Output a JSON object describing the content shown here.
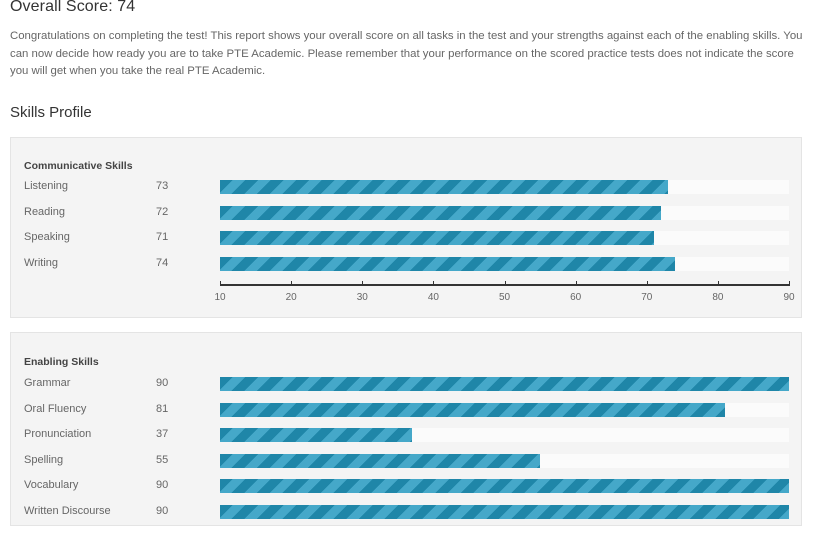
{
  "header": {
    "title": "Overall Score: 74",
    "intro": "Congratulations on completing the test! This report shows your overall score on all tasks in the test and your strengths against each of the enabling skills. You can now decide how ready you are to take PTE Academic. Please remember that your performance on the scored practice tests does not indicate the score you will get when you take the real PTE Academic."
  },
  "skills_profile": {
    "title": "Skills Profile",
    "communicative": {
      "title": "Communicative Skills",
      "items": [
        {
          "name": "Listening",
          "score": "73",
          "value": 73
        },
        {
          "name": "Reading",
          "score": "72",
          "value": 72
        },
        {
          "name": "Speaking",
          "score": "71",
          "value": 71
        },
        {
          "name": "Writing",
          "score": "74",
          "value": 74
        }
      ],
      "axis": {
        "min": 10,
        "max": 90,
        "ticks": [
          "10",
          "20",
          "30",
          "40",
          "50",
          "60",
          "70",
          "80",
          "90"
        ]
      }
    },
    "enabling": {
      "title": "Enabling Skills",
      "items": [
        {
          "name": "Grammar",
          "score": "90",
          "value": 90
        },
        {
          "name": "Oral Fluency",
          "score": "81",
          "value": 81
        },
        {
          "name": "Pronunciation",
          "score": "37",
          "value": 37
        },
        {
          "name": "Spelling",
          "score": "55",
          "value": 55
        },
        {
          "name": "Vocabulary",
          "score": "90",
          "value": 90
        },
        {
          "name": "Written Discourse",
          "score": "90",
          "value": 90
        }
      ]
    }
  },
  "colors": {
    "bar_dark": "#1f86a8",
    "bar_light": "#45a8c9",
    "panel_bg": "#f4f4f4"
  },
  "chart_data": [
    {
      "type": "bar",
      "title": "Communicative Skills",
      "categories": [
        "Listening",
        "Reading",
        "Speaking",
        "Writing"
      ],
      "values": [
        73,
        72,
        71,
        74
      ],
      "xlim": [
        10,
        90
      ],
      "orientation": "horizontal"
    },
    {
      "type": "bar",
      "title": "Enabling Skills",
      "categories": [
        "Grammar",
        "Oral Fluency",
        "Pronunciation",
        "Spelling",
        "Vocabulary",
        "Written Discourse"
      ],
      "values": [
        90,
        81,
        37,
        55,
        90,
        90
      ],
      "xlim": [
        10,
        90
      ],
      "orientation": "horizontal"
    }
  ]
}
